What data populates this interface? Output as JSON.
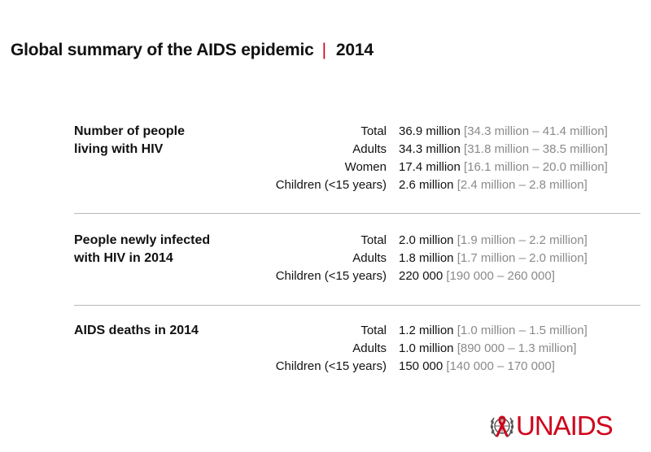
{
  "title": {
    "main": "Global summary of the AIDS epidemic",
    "separator": "|",
    "year": "2014"
  },
  "sections": [
    {
      "label_line1": "Number of people",
      "label_line2": "living with HIV",
      "rows": [
        {
          "label": "Total",
          "value": "36.9 million",
          "range": "[34.3 million – 41.4 million]"
        },
        {
          "label": "Adults",
          "value": "34.3 million",
          "range": "[31.8 million – 38.5 million]"
        },
        {
          "label": "Women",
          "value": "17.4 million",
          "range": "[16.1 million – 20.0 million]"
        },
        {
          "label": "Children (<15 years)",
          "value": "2.6 million",
          "range": "[2.4 million – 2.8 million]"
        }
      ]
    },
    {
      "label_line1": "People newly infected",
      "label_line2": "with HIV in 2014",
      "rows": [
        {
          "label": "Total",
          "value": "2.0 million",
          "range": "[1.9 million – 2.2 million]"
        },
        {
          "label": "Adults",
          "value": "1.8 million",
          "range": "[1.7 million – 2.0 million]"
        },
        {
          "label": "Children (<15 years)",
          "value": "220 000",
          "range": "[190 000 – 260 000]"
        }
      ]
    },
    {
      "label_line1": "AIDS deaths in 2014",
      "label_line2": "",
      "rows": [
        {
          "label": "Total",
          "value": "1.2 million",
          "range": "[1.0 million – 1.5 million]"
        },
        {
          "label": "Adults",
          "value": "1.0 million",
          "range": "[890 000 – 1.3 million]"
        },
        {
          "label": "Children (<15 years)",
          "value": "150 000",
          "range": "[140 000 – 170 000]"
        }
      ]
    }
  ],
  "logo": {
    "text": "UNAIDS",
    "color": "#d0021b",
    "icon": "un-emblem-ribbon-icon"
  }
}
